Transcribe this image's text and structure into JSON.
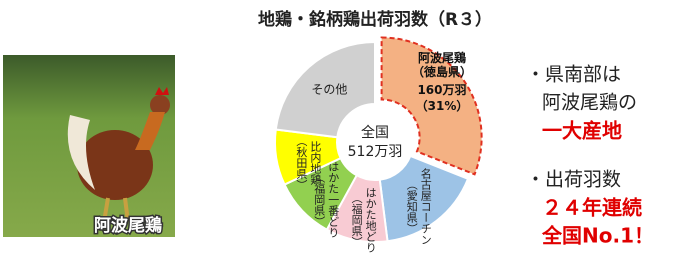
{
  "chart_data": {
    "type": "pie",
    "title": "地鶏・銘柄鶏出荷羽数（R３）",
    "center_label": [
      "全国",
      "512万羽"
    ],
    "categories": [
      [
        "阿波尾鶏",
        "（徳島県）"
      ],
      [
        "名古屋コーチン",
        "（愛知県）"
      ],
      [
        "はかた地どり",
        "（福岡県）"
      ],
      [
        "はかた一番どり",
        "（福岡県）"
      ],
      [
        "比内地鶏",
        "（秋田県）"
      ],
      [
        "その他"
      ]
    ],
    "values": [
      31,
      17,
      10,
      10,
      9,
      23
    ],
    "value_labels": [
      "（31%）",
      null,
      null,
      null,
      null,
      null
    ],
    "amount_label": "160万羽",
    "colors": [
      "#f4b183",
      "#9dc3e6",
      "#f8cbd3",
      "#92d050",
      "#ffff00",
      "#d0d0d0"
    ]
  },
  "photo": {
    "caption": "阿波尾鶏"
  },
  "notes": [
    "・県南部は",
    "阿波尾鶏の",
    "一大産地",
    "・出荷羽数",
    "２４年連続",
    "全国No.1！"
  ]
}
